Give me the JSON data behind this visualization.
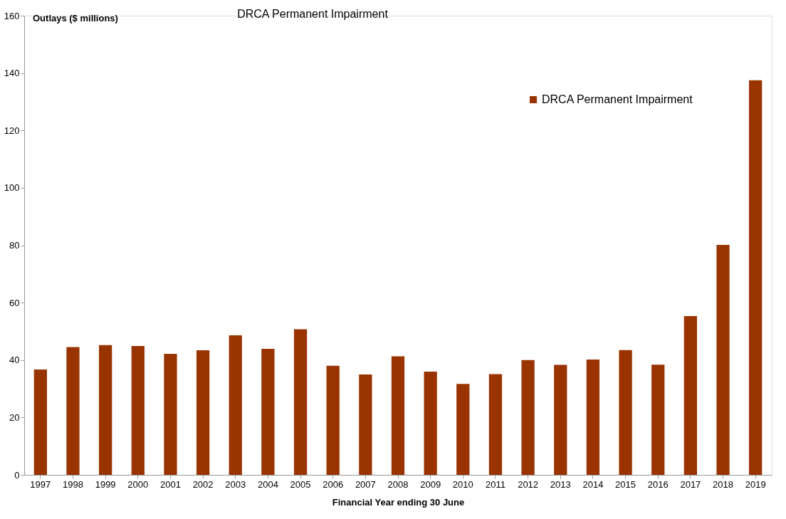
{
  "chart_data": {
    "type": "bar",
    "title": "DRCA Permanent Impairment",
    "ylabel": "Outlays ($ millions)",
    "xlabel": "Financial Year ending 30 June",
    "categories": [
      "1997",
      "1998",
      "1999",
      "2000",
      "2001",
      "2002",
      "2003",
      "2004",
      "2005",
      "2006",
      "2007",
      "2008",
      "2009",
      "2010",
      "2011",
      "2012",
      "2013",
      "2014",
      "2015",
      "2016",
      "2017",
      "2018",
      "2019"
    ],
    "series": [
      {
        "name": "DRCA Permanent Impairment",
        "color": "#993300",
        "values": [
          36.7,
          44.5,
          45.2,
          44.9,
          42.2,
          43.4,
          48.6,
          43.9,
          50.7,
          38,
          35,
          41.3,
          36,
          31.7,
          35.1,
          40,
          38.3,
          40.2,
          43.5,
          38.4,
          55.3,
          80.1,
          137.5
        ]
      }
    ],
    "ylim": [
      0,
      160
    ],
    "yticks": [
      0,
      20,
      40,
      60,
      80,
      100,
      120,
      140,
      160
    ],
    "grid": false,
    "legend": "top right"
  }
}
